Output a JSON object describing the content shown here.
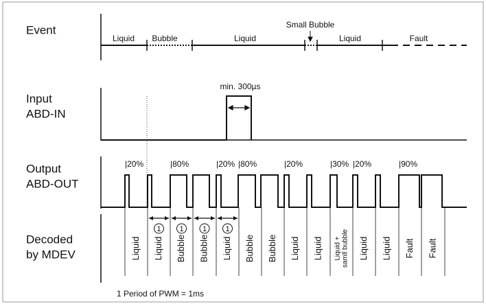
{
  "rows": {
    "event": "Event",
    "input": [
      "Input",
      "ABD-IN"
    ],
    "output": [
      "Output",
      "ABD-OUT"
    ],
    "decoded": [
      "Decoded",
      "by MDEV"
    ]
  },
  "events": [
    "Liquid",
    "Bubble",
    "Liquid",
    "Small Bubble",
    "Liquid",
    "Fault"
  ],
  "input_pulse_label": "min. 300µs",
  "duty_labels": [
    "|20%",
    "|80%",
    "|20%",
    "|80%",
    "|20%",
    "|30%",
    "|20%",
    "|90%"
  ],
  "period_markers": [
    "1",
    "1",
    "1",
    "1"
  ],
  "decoded": [
    [
      "Liquid"
    ],
    [
      "Liquid"
    ],
    [
      "Bubble"
    ],
    [
      "Bubble"
    ],
    [
      "Liquid"
    ],
    [
      "Bubble"
    ],
    [
      "Bubble"
    ],
    [
      "Liquid"
    ],
    [
      "Liquid"
    ],
    [
      "Liquid +",
      "samll bubble"
    ],
    [
      "Liquid"
    ],
    [
      "Liquid"
    ],
    [
      "Fault"
    ],
    [
      "Fault"
    ]
  ],
  "footer": "1 Period of PWM = 1ms"
}
